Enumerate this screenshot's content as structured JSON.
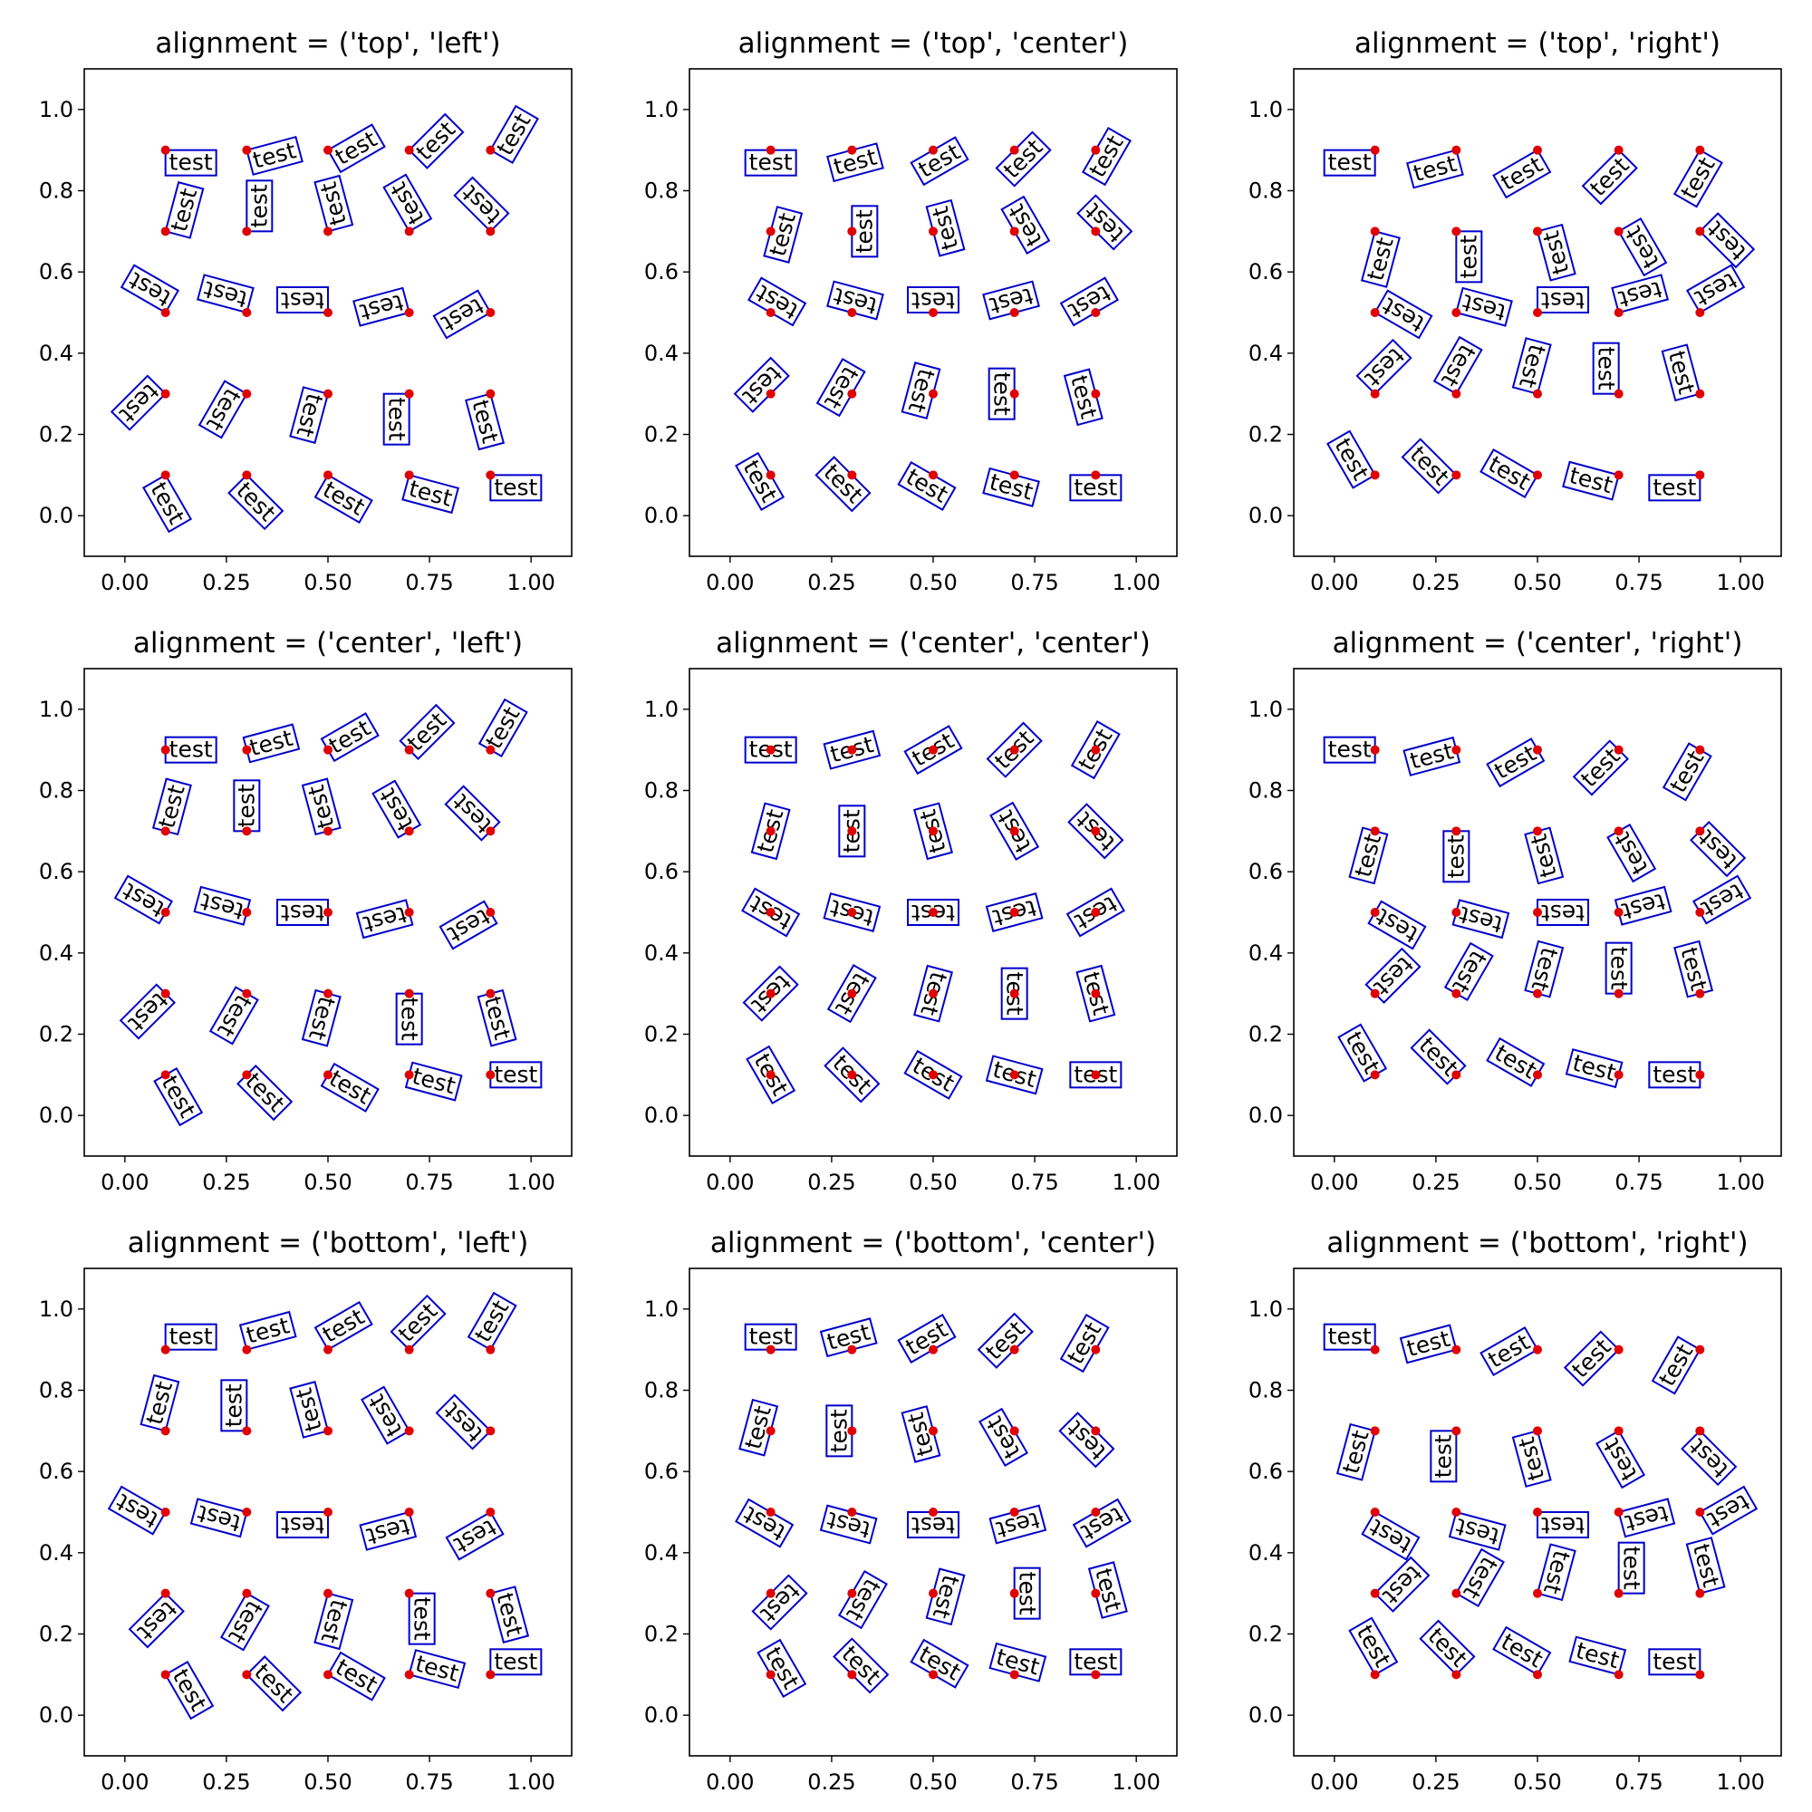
{
  "chart_data": [
    {
      "type": "scatter",
      "title": "alignment = ('top', 'left')",
      "valign": "top",
      "halign": "left"
    },
    {
      "type": "scatter",
      "title": "alignment = ('top', 'center')",
      "valign": "top",
      "halign": "center"
    },
    {
      "type": "scatter",
      "title": "alignment = ('top', 'right')",
      "valign": "top",
      "halign": "right"
    },
    {
      "type": "scatter",
      "title": "alignment = ('center', 'left')",
      "valign": "center",
      "halign": "left"
    },
    {
      "type": "scatter",
      "title": "alignment = ('center', 'center')",
      "valign": "center",
      "halign": "center"
    },
    {
      "type": "scatter",
      "title": "alignment = ('center', 'right')",
      "valign": "center",
      "halign": "right"
    },
    {
      "type": "scatter",
      "title": "alignment = ('bottom', 'left')",
      "valign": "bottom",
      "halign": "left"
    },
    {
      "type": "scatter",
      "title": "alignment = ('bottom', 'center')",
      "valign": "bottom",
      "halign": "center"
    },
    {
      "type": "scatter",
      "title": "alignment = ('bottom', 'right')",
      "valign": "bottom",
      "halign": "right"
    }
  ],
  "shared": {
    "x": [
      0.1,
      0.3,
      0.5,
      0.7,
      0.9
    ],
    "y": [
      0.9,
      0.7,
      0.5,
      0.3,
      0.1
    ],
    "rotation_start_deg": 0,
    "rotation_step_deg": 15,
    "label": "test",
    "xlim": [
      -0.1,
      1.1
    ],
    "ylim": [
      -0.1,
      1.1
    ],
    "xticks": [
      "0.00",
      "0.25",
      "0.50",
      "0.75",
      "1.00"
    ],
    "yticks": [
      "0.0",
      "0.2",
      "0.4",
      "0.6",
      "0.8",
      "1.0"
    ],
    "marker_color": "#e00000",
    "box_color": "#0000cc"
  }
}
